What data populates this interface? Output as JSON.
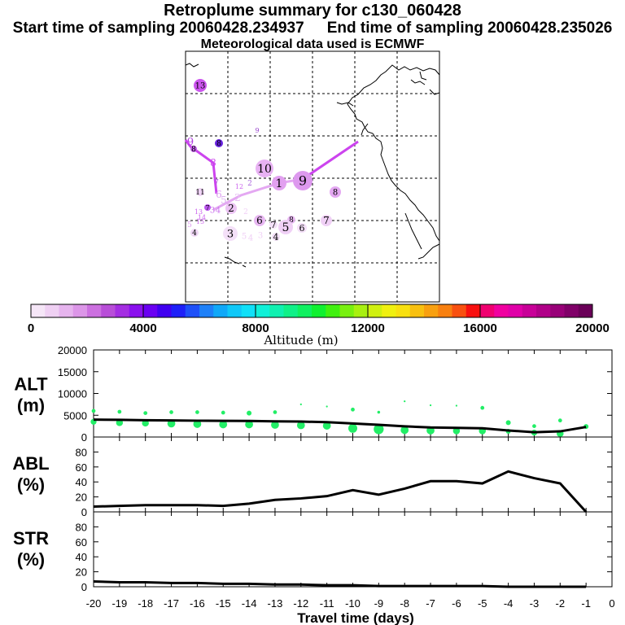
{
  "header": {
    "title": "Retroplume summary for c130_060428",
    "start_label": "Start time of sampling 20060428.234937",
    "end_label": "End time of sampling 20060428.235026",
    "met_label": "Meteorological data used is ECMWF"
  },
  "colorbar": {
    "title": "Altitude (m)",
    "ticks": [
      "0",
      "4000",
      "8000",
      "12000",
      "16000",
      "20000"
    ],
    "colors": [
      "#f5e6f7",
      "#efd0f3",
      "#e6b4ee",
      "#dc96e8",
      "#cc70e0",
      "#b84ed8",
      "#a42ee2",
      "#8a10ee",
      "#6a00f2",
      "#4000f0",
      "#1e20f8",
      "#1e50f8",
      "#1e80f8",
      "#10a8f8",
      "#10c8f8",
      "#10e0f8",
      "#10f0d8",
      "#10f0b0",
      "#10f088",
      "#10f060",
      "#10f030",
      "#40f010",
      "#78f010",
      "#a8f010",
      "#d0f010",
      "#f0f010",
      "#f8e010",
      "#f8c010",
      "#f8a010",
      "#f88010",
      "#f85010",
      "#f81010",
      "#f00070",
      "#f000a0",
      "#e000a8",
      "#c80098",
      "#b00088",
      "#980078",
      "#800068",
      "#6a0058"
    ]
  },
  "map": {
    "line_color": "#cc44ee",
    "line_color_light": "#e4a8f2",
    "labels": [
      {
        "t": "13",
        "x": 246,
        "y": 105,
        "r": 8,
        "c": "#cc55ee",
        "fs": 10
      },
      {
        "t": "9",
        "x": 316,
        "y": 160,
        "r": 0,
        "c": "#9944cc",
        "fs": 8
      },
      {
        "t": "9",
        "x": 234,
        "y": 174,
        "r": 0,
        "c": "#b040e0",
        "fs": 13
      },
      {
        "t": "8",
        "x": 238,
        "y": 183,
        "r": 4,
        "c": "#c060e8",
        "fs": 9
      },
      {
        "t": "8",
        "x": 269,
        "y": 176,
        "r": 5,
        "c": "#6622dd",
        "fs": 9
      },
      {
        "t": "8",
        "x": 262,
        "y": 200,
        "r": 0,
        "c": "#cc44ee",
        "fs": 12
      },
      {
        "t": "10",
        "x": 325,
        "y": 207,
        "r": 11,
        "c": "#e8b2f3",
        "fs": 14
      },
      {
        "t": "1",
        "x": 343,
        "y": 225,
        "r": 9,
        "c": "#e2a0f0",
        "fs": 14
      },
      {
        "t": "9",
        "x": 372,
        "y": 222,
        "r": 12,
        "c": "#dd99ee",
        "fs": 16
      },
      {
        "t": "8",
        "x": 412,
        "y": 236,
        "r": 7,
        "c": "#e4a8f2",
        "fs": 10
      },
      {
        "t": "11",
        "x": 246,
        "y": 236,
        "r": 5,
        "c": "#f0d4f6",
        "fs": 9
      },
      {
        "t": "7",
        "x": 266,
        "y": 224,
        "r": 0,
        "c": "#aa55dd",
        "fs": 9
      },
      {
        "t": "12",
        "x": 294,
        "y": 229,
        "r": 0,
        "c": "#cc66ee",
        "fs": 8
      },
      {
        "t": "2",
        "x": 307,
        "y": 225,
        "r": 0,
        "c": "#aa66dd",
        "fs": 9
      },
      {
        "t": "6",
        "x": 269,
        "y": 239,
        "r": 0,
        "c": "#dda0f0",
        "fs": 12
      },
      {
        "t": "5",
        "x": 275,
        "y": 246,
        "r": 0,
        "c": "#ddb0f0",
        "fs": 12
      },
      {
        "t": "2",
        "x": 292,
        "y": 243,
        "r": 0,
        "c": "#e8c0f4",
        "fs": 12
      },
      {
        "t": "2",
        "x": 284,
        "y": 256,
        "r": 7,
        "c": "#ecc4f4",
        "fs": 12
      },
      {
        "t": "2",
        "x": 302,
        "y": 260,
        "r": 0,
        "c": "#f0d0f6",
        "fs": 9
      },
      {
        "t": "3",
        "x": 261,
        "y": 258,
        "r": 0,
        "c": "#cc77ee",
        "fs": 10
      },
      {
        "t": "4",
        "x": 268,
        "y": 258,
        "r": 0,
        "c": "#cc77ee",
        "fs": 10
      },
      {
        "t": "7",
        "x": 255,
        "y": 255,
        "r": 4,
        "c": "#bb55ee",
        "fs": 8
      },
      {
        "t": "13",
        "x": 244,
        "y": 260,
        "r": 0,
        "c": "#cc66ee",
        "fs": 8
      },
      {
        "t": "14",
        "x": 248,
        "y": 267,
        "r": 0,
        "c": "#cc66ee",
        "fs": 8
      },
      {
        "t": "15",
        "x": 246,
        "y": 272,
        "r": 0,
        "c": "#cc66ee",
        "fs": 8
      },
      {
        "t": "5",
        "x": 233,
        "y": 276,
        "r": 0,
        "c": "#dd99ee",
        "fs": 9
      },
      {
        "t": "4",
        "x": 239,
        "y": 286,
        "r": 5,
        "c": "#f0d8f6",
        "fs": 9
      },
      {
        "t": "6",
        "x": 319,
        "y": 271,
        "r": 7,
        "c": "#e8b8f2",
        "fs": 12
      },
      {
        "t": "8",
        "x": 358,
        "y": 270,
        "r": 5,
        "c": "#e8b8f2",
        "fs": 9
      },
      {
        "t": "5",
        "x": 351,
        "y": 279,
        "r": 9,
        "c": "#f0d0f6",
        "fs": 14
      },
      {
        "t": "7",
        "x": 336,
        "y": 276,
        "r": 5,
        "c": "#f4e0f8",
        "fs": 11
      },
      {
        "t": "6",
        "x": 371,
        "y": 280,
        "r": 6,
        "c": "#f4e0f8",
        "fs": 11
      },
      {
        "t": "7",
        "x": 401,
        "y": 271,
        "r": 7,
        "c": "#f0d0f6",
        "fs": 12
      },
      {
        "t": "3",
        "x": 283,
        "y": 287,
        "r": 9,
        "c": "#f4e0f8",
        "fs": 13
      },
      {
        "t": "5",
        "x": 300,
        "y": 290,
        "r": 0,
        "c": "#f0d0f6",
        "fs": 10
      },
      {
        "t": "4",
        "x": 308,
        "y": 292,
        "r": 0,
        "c": "#f0d0f6",
        "fs": 10
      },
      {
        "t": "3",
        "x": 320,
        "y": 289,
        "r": 0,
        "c": "#f0d0f6",
        "fs": 10
      },
      {
        "t": "4",
        "x": 339,
        "y": 291,
        "r": 5,
        "c": "#f4e0f8",
        "fs": 11
      }
    ]
  },
  "chart_data": [
    {
      "type": "line+scatter",
      "ylabel": "ALT\n(m)",
      "ylim": [
        0,
        20000
      ],
      "yticks": [
        "0",
        "5000",
        "10000",
        "15000",
        "20000"
      ],
      "x": [
        -20,
        -19,
        -18,
        -17,
        -16,
        -15,
        -14,
        -13,
        -12,
        -11,
        -10,
        -9,
        -8,
        -7,
        -6,
        -5,
        -4,
        -3,
        -2,
        -1
      ],
      "values": [
        4000,
        3950,
        3850,
        3800,
        3750,
        3720,
        3700,
        3600,
        3550,
        3400,
        3100,
        2800,
        2450,
        2200,
        2100,
        2000,
        1500,
        1100,
        1300,
        2300
      ],
      "scatter_series": [
        {
          "name": "upper",
          "values": [
            6000,
            5800,
            5500,
            5700,
            5700,
            5600,
            5500,
            5700,
            null,
            null,
            6300,
            5700,
            null,
            null,
            null,
            6700,
            3300,
            2500,
            3800,
            null
          ],
          "sizes": [
            3,
            3,
            3,
            3,
            3,
            3,
            4,
            3,
            0,
            0,
            3,
            2,
            0,
            0,
            0,
            3,
            4,
            3,
            3,
            0
          ]
        },
        {
          "name": "lower",
          "values": [
            3500,
            3300,
            3200,
            3100,
            3000,
            2900,
            2900,
            2800,
            2700,
            2600,
            2000,
            1800,
            1600,
            1500,
            1400,
            1400,
            1300,
            1000,
            800,
            2400
          ],
          "sizes": [
            5,
            6,
            6,
            7,
            7,
            7,
            7,
            7,
            7,
            7,
            8,
            9,
            7,
            7,
            6,
            6,
            4,
            5,
            6,
            4
          ]
        },
        {
          "name": "top",
          "values": [
            null,
            null,
            null,
            null,
            null,
            null,
            null,
            null,
            7500,
            7000,
            null,
            null,
            8200,
            7300,
            7200,
            null,
            null,
            null,
            null,
            null
          ],
          "sizes": [
            0,
            0,
            0,
            0,
            0,
            0,
            0,
            0,
            1,
            1,
            0,
            0,
            1,
            1,
            1,
            0,
            0,
            0,
            0,
            0
          ]
        }
      ]
    },
    {
      "type": "line",
      "ylabel": "ABL\n(%)",
      "ylim": [
        0,
        100
      ],
      "yticks": [
        "0",
        "20",
        "40",
        "60",
        "80"
      ],
      "x": [
        -20,
        -19,
        -18,
        -17,
        -16,
        -15,
        -14,
        -13,
        -12,
        -11,
        -10,
        -9,
        -8,
        -7,
        -6,
        -5,
        -4,
        -3,
        -2,
        -1
      ],
      "values": [
        7,
        8,
        9,
        9,
        9,
        8,
        11,
        16,
        18,
        21,
        29,
        23,
        31,
        41,
        41,
        38,
        54,
        45,
        38,
        0
      ]
    },
    {
      "type": "line",
      "ylabel": "STR\n(%)",
      "ylim": [
        0,
        100
      ],
      "yticks": [
        "0",
        "20",
        "40",
        "60",
        "80"
      ],
      "x": [
        -20,
        -19,
        -18,
        -17,
        -16,
        -15,
        -14,
        -13,
        -12,
        -11,
        -10,
        -9,
        -8,
        -7,
        -6,
        -5,
        -4,
        -3,
        -2,
        -1
      ],
      "values": [
        7,
        6,
        6,
        5,
        5,
        4,
        4,
        3,
        3,
        2,
        2,
        1,
        1,
        1,
        1,
        1,
        0,
        0,
        0,
        0
      ]
    }
  ],
  "xaxis": {
    "title": "Travel time (days)",
    "ticks": [
      "-20",
      "-19",
      "-18",
      "-17",
      "-16",
      "-15",
      "-14",
      "-13",
      "-12",
      "-11",
      "-10",
      "-9",
      "-8",
      "-7",
      "-6",
      "-5",
      "-4",
      "-3",
      "-2",
      "-1",
      "0"
    ]
  },
  "colors": {
    "alt_dot": "#22ee66",
    "line": "#000000"
  }
}
